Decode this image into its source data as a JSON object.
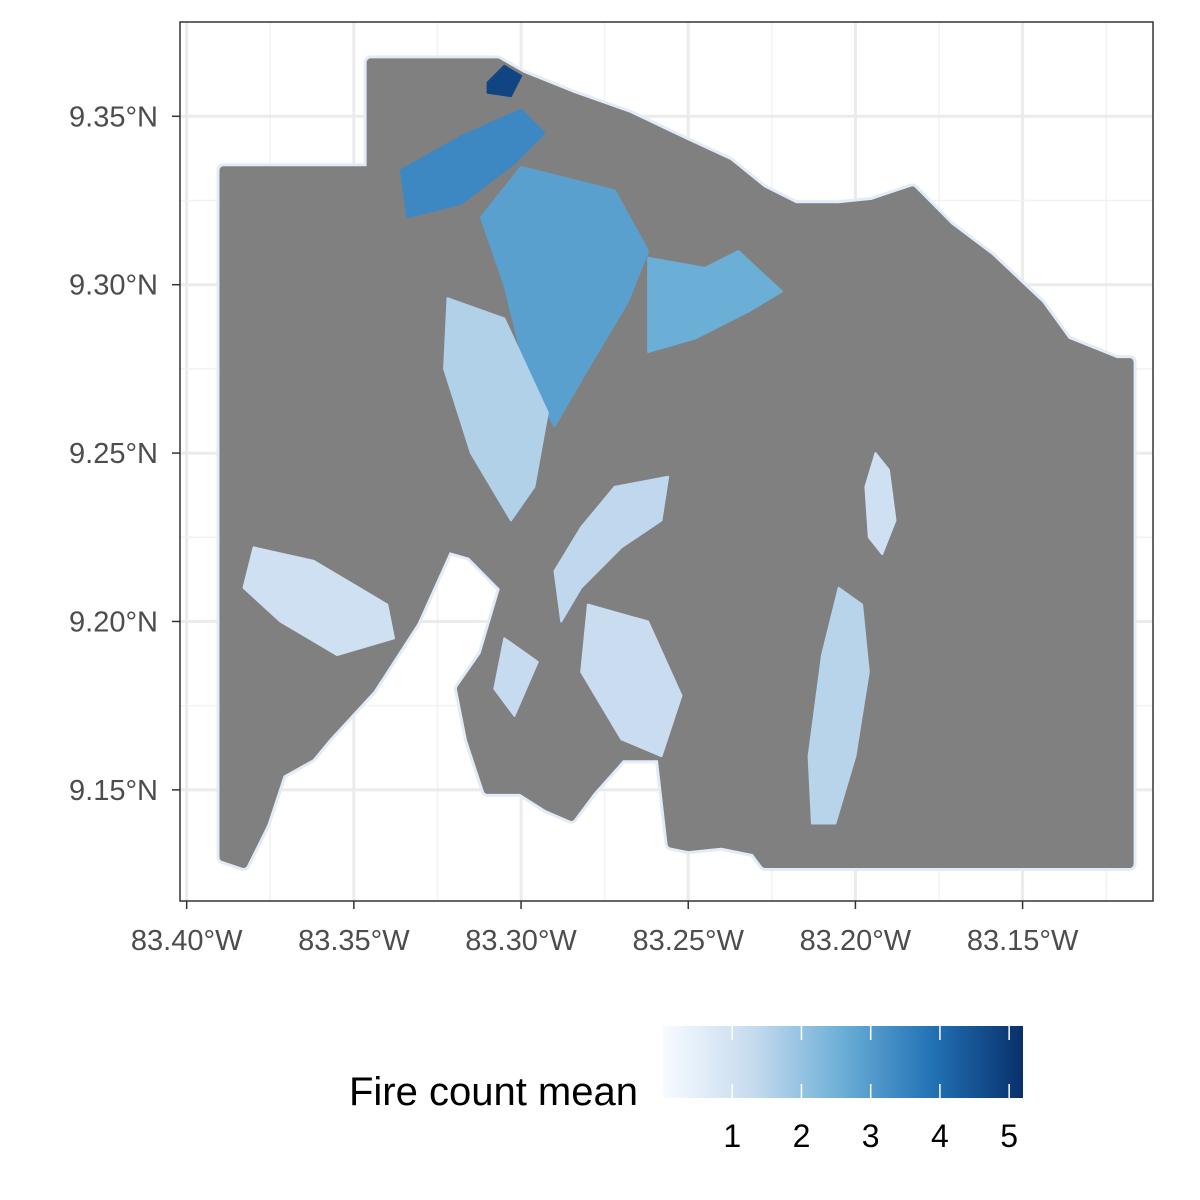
{
  "map": {
    "x_axis": {
      "min": -83.402,
      "max": -83.111,
      "ticks": [
        {
          "value": -83.4,
          "label": "83.40°W"
        },
        {
          "value": -83.35,
          "label": "83.35°W"
        },
        {
          "value": -83.3,
          "label": "83.30°W"
        },
        {
          "value": -83.25,
          "label": "83.25°W"
        },
        {
          "value": -83.2,
          "label": "83.20°W"
        },
        {
          "value": -83.15,
          "label": "83.15°W"
        }
      ]
    },
    "y_axis": {
      "min": 9.117,
      "max": 9.378,
      "ticks": [
        {
          "value": 9.35,
          "label": "9.35°N"
        },
        {
          "value": 9.3,
          "label": "9.30°N"
        },
        {
          "value": 9.25,
          "label": "9.25°N"
        },
        {
          "value": 9.2,
          "label": "9.20°N"
        },
        {
          "value": 9.15,
          "label": "9.15°N"
        }
      ]
    },
    "grid": true,
    "background_fill": "#808080",
    "region_outline": [
      [
        -83.389,
        9.334
      ],
      [
        -83.345,
        9.334
      ],
      [
        -83.345,
        9.366
      ],
      [
        -83.307,
        9.366
      ],
      [
        -83.3,
        9.362
      ],
      [
        -83.285,
        9.356
      ],
      [
        -83.268,
        9.35
      ],
      [
        -83.251,
        9.342
      ],
      [
        -83.238,
        9.336
      ],
      [
        -83.228,
        9.328
      ],
      [
        -83.218,
        9.323
      ],
      [
        -83.205,
        9.323
      ],
      [
        -83.195,
        9.324
      ],
      [
        -83.183,
        9.328
      ],
      [
        -83.172,
        9.317
      ],
      [
        -83.16,
        9.308
      ],
      [
        -83.145,
        9.294
      ],
      [
        -83.137,
        9.283
      ],
      [
        -83.122,
        9.277
      ],
      [
        -83.118,
        9.277
      ],
      [
        -83.118,
        9.128
      ],
      [
        -83.227,
        9.128
      ],
      [
        -83.23,
        9.132
      ],
      [
        -83.24,
        9.134
      ],
      [
        -83.25,
        9.133
      ],
      [
        -83.255,
        9.134
      ],
      [
        -83.258,
        9.16
      ],
      [
        -83.27,
        9.16
      ],
      [
        -83.279,
        9.15
      ],
      [
        -83.285,
        9.142
      ],
      [
        -83.292,
        9.145
      ],
      [
        -83.3,
        9.15
      ],
      [
        -83.31,
        9.15
      ],
      [
        -83.315,
        9.165
      ],
      [
        -83.318,
        9.18
      ],
      [
        -83.311,
        9.19
      ],
      [
        -83.305,
        9.21
      ],
      [
        -83.315,
        9.22
      ],
      [
        -83.322,
        9.222
      ],
      [
        -83.332,
        9.2
      ],
      [
        -83.345,
        9.18
      ],
      [
        -83.358,
        9.166
      ],
      [
        -83.363,
        9.16
      ],
      [
        -83.372,
        9.155
      ],
      [
        -83.377,
        9.14
      ],
      [
        -83.383,
        9.128
      ],
      [
        -83.389,
        9.13
      ]
    ],
    "fire_patches": [
      {
        "outline": [
          [
            -83.31,
            9.36
          ],
          [
            -83.305,
            9.365
          ],
          [
            -83.3,
            9.362
          ],
          [
            -83.303,
            9.356
          ],
          [
            -83.31,
            9.357
          ]
        ],
        "mean": 4.8
      },
      {
        "outline": [
          [
            -83.336,
            9.334
          ],
          [
            -83.318,
            9.344
          ],
          [
            -83.3,
            9.352
          ],
          [
            -83.293,
            9.345
          ],
          [
            -83.302,
            9.336
          ],
          [
            -83.318,
            9.324
          ],
          [
            -83.334,
            9.32
          ]
        ],
        "mean": 3.4
      },
      {
        "outline": [
          [
            -83.3,
            9.335
          ],
          [
            -83.272,
            9.328
          ],
          [
            -83.262,
            9.31
          ],
          [
            -83.268,
            9.295
          ],
          [
            -83.28,
            9.275
          ],
          [
            -83.29,
            9.258
          ],
          [
            -83.298,
            9.272
          ],
          [
            -83.305,
            9.3
          ],
          [
            -83.312,
            9.32
          ]
        ],
        "mean": 2.9
      },
      {
        "outline": [
          [
            -83.262,
            9.308
          ],
          [
            -83.245,
            9.305
          ],
          [
            -83.235,
            9.31
          ],
          [
            -83.222,
            9.298
          ],
          [
            -83.232,
            9.292
          ],
          [
            -83.248,
            9.284
          ],
          [
            -83.262,
            9.28
          ]
        ],
        "mean": 2.6
      },
      {
        "outline": [
          [
            -83.322,
            9.296
          ],
          [
            -83.305,
            9.29
          ],
          [
            -83.292,
            9.262
          ],
          [
            -83.296,
            9.24
          ],
          [
            -83.303,
            9.23
          ],
          [
            -83.315,
            9.25
          ],
          [
            -83.323,
            9.275
          ]
        ],
        "mean": 1.6
      },
      {
        "outline": [
          [
            -83.272,
            9.24
          ],
          [
            -83.256,
            9.243
          ],
          [
            -83.258,
            9.23
          ],
          [
            -83.27,
            9.222
          ],
          [
            -83.282,
            9.21
          ],
          [
            -83.288,
            9.2
          ],
          [
            -83.29,
            9.215
          ],
          [
            -83.282,
            9.228
          ]
        ],
        "mean": 1.4
      },
      {
        "outline": [
          [
            -83.38,
            9.222
          ],
          [
            -83.362,
            9.218
          ],
          [
            -83.34,
            9.205
          ],
          [
            -83.338,
            9.195
          ],
          [
            -83.355,
            9.19
          ],
          [
            -83.372,
            9.2
          ],
          [
            -83.383,
            9.21
          ]
        ],
        "mean": 1.1
      },
      {
        "outline": [
          [
            -83.28,
            9.205
          ],
          [
            -83.262,
            9.2
          ],
          [
            -83.252,
            9.178
          ],
          [
            -83.258,
            9.16
          ],
          [
            -83.27,
            9.165
          ],
          [
            -83.282,
            9.185
          ]
        ],
        "mean": 1.2
      },
      {
        "outline": [
          [
            -83.205,
            9.21
          ],
          [
            -83.198,
            9.205
          ],
          [
            -83.196,
            9.185
          ],
          [
            -83.2,
            9.16
          ],
          [
            -83.206,
            9.14
          ],
          [
            -83.213,
            9.14
          ],
          [
            -83.214,
            9.16
          ],
          [
            -83.21,
            9.19
          ]
        ],
        "mean": 1.5
      },
      {
        "outline": [
          [
            -83.194,
            9.25
          ],
          [
            -83.19,
            9.245
          ],
          [
            -83.188,
            9.23
          ],
          [
            -83.192,
            9.22
          ],
          [
            -83.196,
            9.225
          ],
          [
            -83.197,
            9.24
          ]
        ],
        "mean": 1.1
      },
      {
        "outline": [
          [
            -83.305,
            9.195
          ],
          [
            -83.295,
            9.188
          ],
          [
            -83.302,
            9.172
          ],
          [
            -83.308,
            9.18
          ]
        ],
        "mean": 1.3
      }
    ],
    "colorbar": {
      "min": 0,
      "max": 5.2,
      "colors": [
        "#f7fbff",
        "#c6dbef",
        "#6baed6",
        "#2171b5",
        "#08306b"
      ],
      "ticks": [
        1,
        2,
        3,
        4,
        5
      ],
      "tick_labels": [
        "1",
        "2",
        "3",
        "4",
        "5"
      ]
    }
  },
  "legend": {
    "title": "Fire count mean"
  }
}
